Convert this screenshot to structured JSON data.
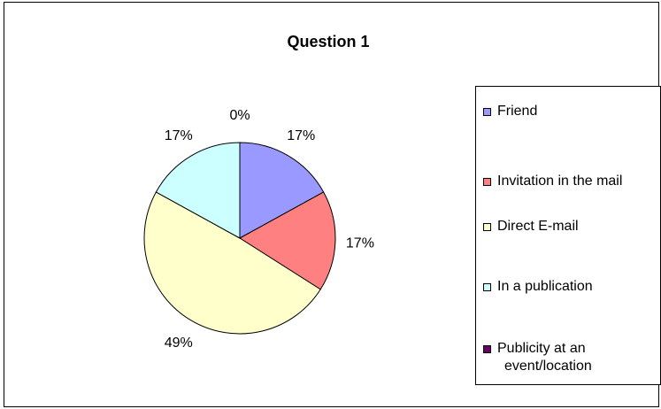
{
  "chart_data": {
    "type": "pie",
    "title": "Question 1",
    "slices": [
      {
        "label": "Friend",
        "value": 17,
        "display": "17%",
        "color": "#9999ff"
      },
      {
        "label": "Invitation in the mail",
        "value": 17,
        "display": "17%",
        "color": "#ff8080"
      },
      {
        "label": "Direct E-mail",
        "value": 49,
        "display": "49%",
        "color": "#ffffcc"
      },
      {
        "label": "In a publication",
        "value": 17,
        "display": "17%",
        "color": "#ccffff"
      },
      {
        "label": "Publicity at an event/location",
        "value": 0,
        "display": "0%",
        "color": "#660066"
      }
    ],
    "legend_position": "right"
  },
  "legend": {
    "items": [
      {
        "lines": [
          "Friend"
        ]
      },
      {
        "lines": [
          "Invitation in the mail"
        ]
      },
      {
        "lines": [
          "Direct E-mail"
        ]
      },
      {
        "lines": [
          "In a publication"
        ]
      },
      {
        "lines": [
          "Publicity at an",
          "event/location"
        ]
      }
    ]
  }
}
